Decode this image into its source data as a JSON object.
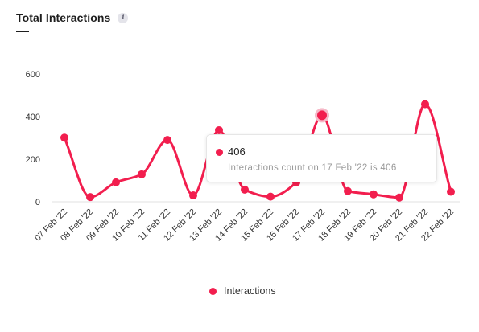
{
  "header": {
    "title": "Total Interactions",
    "info_icon": "i"
  },
  "colors": {
    "series": "#f21e4e",
    "highlight_ring": "#f6b9c8"
  },
  "tooltip": {
    "value": "406",
    "description": "Interactions count on 17 Feb '22 is 406"
  },
  "legend": {
    "label": "Interactions"
  },
  "chart_data": {
    "type": "line",
    "title": "Total Interactions",
    "xlabel": "",
    "ylabel": "",
    "categories": [
      "07 Feb '22",
      "08 Feb '22",
      "09 Feb '22",
      "10 Feb '22",
      "11 Feb '22",
      "12 Feb '22",
      "13 Feb '22",
      "14 Feb '22",
      "15 Feb '22",
      "16 Feb '22",
      "17 Feb '22",
      "18 Feb '22",
      "19 Feb '22",
      "20 Feb '22",
      "21 Feb '22",
      "22 Feb '22"
    ],
    "series": [
      {
        "name": "Interactions",
        "values": [
          301,
          22,
          91,
          129,
          290,
          30,
          336,
          57,
          24,
          91,
          406,
          50,
          35,
          20,
          458,
          47
        ]
      }
    ],
    "ylim": [
      0,
      600
    ],
    "yticks": [
      0,
      200,
      400,
      600
    ],
    "highlighted_index": 10,
    "legend_position": "bottom",
    "grid": false
  }
}
